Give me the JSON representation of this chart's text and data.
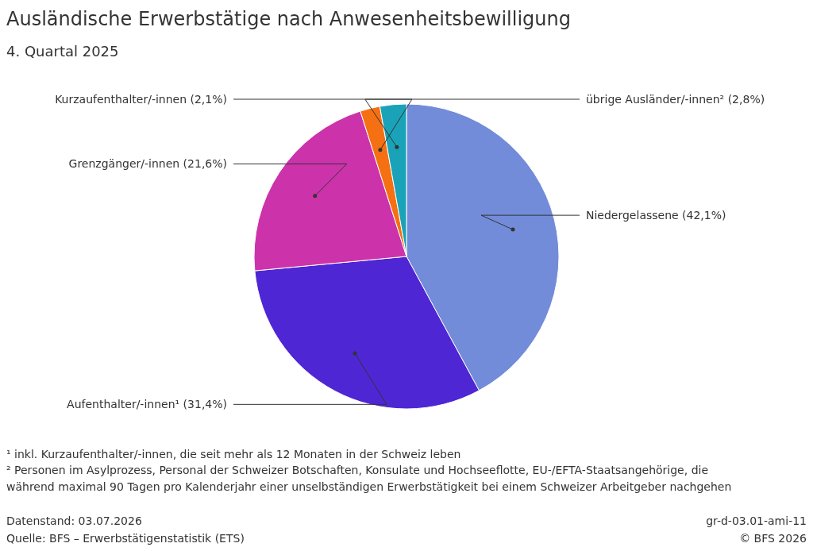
{
  "chart_data": {
    "type": "pie",
    "title": "Ausländische Erwerbstätige nach Anwesenheitsbewilligung",
    "subtitle": "4. Quartal 2025",
    "categories": [
      "Niedergelassene",
      "Aufenthalter/-innen¹",
      "Grenzgänger/-innen",
      "Kurzaufenthalter/-innen",
      "übrige Ausländer/-innen²"
    ],
    "values": [
      42.1,
      31.4,
      21.6,
      2.1,
      2.8
    ],
    "value_labels": [
      "(42,1%)",
      "(31,4%)",
      "(21,6%)",
      "(2,1%)",
      "(2,8%)"
    ],
    "colors": [
      "#728cd9",
      "#4f26d4",
      "#cc33aa",
      "#f57012",
      "#1aa3b8"
    ],
    "annotations": [
      "¹ inkl. Kurzaufenthalter/-innen, die seit mehr als 12 Monaten in der Schweiz leben",
      "² Personen im Asylprozess, Personal der Schweizer Botschaften, Konsulate und Hochseeflotte, EU-/EFTA-Staatsangehörige, die",
      "während maximal 90 Tagen pro Kalenderjahr einer unselbständigen Erwerbstätigkeit bei einem Schweizer Arbeitgeber nachgehen",
      "Datenstand: 03.07.2026",
      "Quelle: BFS – Erwerbstätigenstatistik (ETS)",
      "gr-d-03.01-ami-11",
      "© BFS 2026"
    ]
  }
}
